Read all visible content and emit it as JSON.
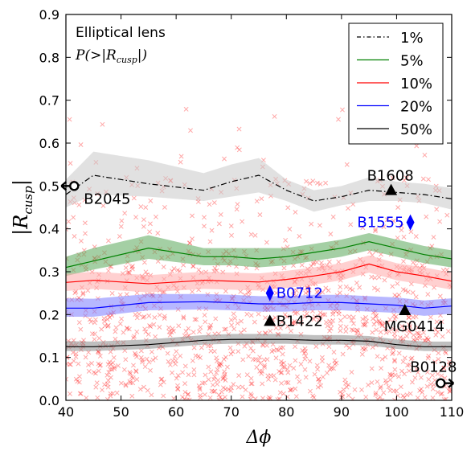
{
  "chart_data": {
    "type": "line",
    "annotation_title": "Elliptical lens",
    "annotation_subtitle": "P(>|Rcusp|)",
    "xlabel": "Δϕ",
    "ylabel": "|Rcusp|",
    "xlim": [
      40,
      110
    ],
    "ylim": [
      0,
      0.9
    ],
    "xticks": [
      40,
      50,
      60,
      70,
      80,
      90,
      100,
      110
    ],
    "yticks": [
      0.0,
      0.1,
      0.2,
      0.3,
      0.4,
      0.5,
      0.6,
      0.7,
      0.8,
      0.9
    ],
    "x": [
      40,
      45,
      55,
      65,
      70,
      75,
      80,
      85,
      90,
      95,
      100,
      105,
      110
    ],
    "series": [
      {
        "name": "1%",
        "color": "#000000",
        "style": "dashdot",
        "band_color": "#c8c8c8",
        "values": [
          0.48,
          0.525,
          0.505,
          0.49,
          0.51,
          0.525,
          0.49,
          0.465,
          0.475,
          0.49,
          0.485,
          0.48,
          0.47
        ],
        "band_low": [
          0.45,
          0.48,
          0.475,
          0.465,
          0.475,
          0.485,
          0.465,
          0.44,
          0.455,
          0.465,
          0.465,
          0.46,
          0.445
        ],
        "band_high": [
          0.515,
          0.58,
          0.56,
          0.53,
          0.55,
          0.565,
          0.515,
          0.49,
          0.5,
          0.52,
          0.51,
          0.505,
          0.495
        ]
      },
      {
        "name": "5%",
        "color": "#008000",
        "style": "solid",
        "band_color": "#5aa85a",
        "values": [
          0.31,
          0.325,
          0.355,
          0.335,
          0.335,
          0.33,
          0.335,
          0.345,
          0.355,
          0.37,
          0.355,
          0.34,
          0.33
        ],
        "band_low": [
          0.29,
          0.305,
          0.33,
          0.315,
          0.315,
          0.31,
          0.315,
          0.325,
          0.335,
          0.35,
          0.335,
          0.32,
          0.31
        ],
        "band_high": [
          0.335,
          0.355,
          0.385,
          0.355,
          0.355,
          0.355,
          0.355,
          0.365,
          0.375,
          0.39,
          0.375,
          0.36,
          0.35
        ]
      },
      {
        "name": "10%",
        "color": "#ff0000",
        "style": "solid",
        "band_color": "#ffaaaa",
        "values": [
          0.275,
          0.28,
          0.272,
          0.28,
          0.278,
          0.276,
          0.282,
          0.29,
          0.3,
          0.318,
          0.3,
          0.29,
          0.278
        ],
        "band_low": [
          0.255,
          0.26,
          0.252,
          0.26,
          0.258,
          0.256,
          0.262,
          0.27,
          0.28,
          0.298,
          0.28,
          0.27,
          0.258
        ],
        "band_high": [
          0.295,
          0.3,
          0.292,
          0.3,
          0.298,
          0.296,
          0.302,
          0.31,
          0.32,
          0.338,
          0.32,
          0.31,
          0.298
        ]
      },
      {
        "name": "20%",
        "color": "#0000ff",
        "style": "solid",
        "band_color": "#7b7bff",
        "values": [
          0.215,
          0.215,
          0.228,
          0.23,
          0.228,
          0.225,
          0.225,
          0.228,
          0.228,
          0.225,
          0.222,
          0.215,
          0.22
        ],
        "band_low": [
          0.195,
          0.195,
          0.21,
          0.212,
          0.21,
          0.207,
          0.207,
          0.21,
          0.21,
          0.207,
          0.204,
          0.197,
          0.202
        ],
        "band_high": [
          0.238,
          0.237,
          0.248,
          0.248,
          0.246,
          0.243,
          0.243,
          0.246,
          0.246,
          0.243,
          0.24,
          0.233,
          0.238
        ]
      },
      {
        "name": "50%",
        "color": "#000000",
        "style": "solid",
        "band_color": "#8a8a8a",
        "values": [
          0.125,
          0.125,
          0.13,
          0.14,
          0.142,
          0.142,
          0.142,
          0.14,
          0.14,
          0.138,
          0.13,
          0.125,
          0.125
        ],
        "band_low": [
          0.115,
          0.115,
          0.12,
          0.13,
          0.132,
          0.132,
          0.132,
          0.13,
          0.13,
          0.128,
          0.12,
          0.115,
          0.115
        ],
        "band_high": [
          0.138,
          0.137,
          0.142,
          0.152,
          0.155,
          0.155,
          0.155,
          0.152,
          0.152,
          0.15,
          0.142,
          0.137,
          0.137
        ]
      }
    ],
    "lenses": [
      {
        "name": "B1608",
        "x": 99,
        "y": 0.49,
        "marker": "triangle",
        "color": "#000000",
        "label_color": "#000000",
        "label_pos": "above"
      },
      {
        "name": "B2045",
        "x": 41.5,
        "y": 0.5,
        "marker": "open-circle-arrow-left",
        "color": "#000000",
        "label_color": "#000000",
        "label_pos": "below-right"
      },
      {
        "name": "B1555",
        "x": 102.5,
        "y": 0.415,
        "marker": "diamond",
        "color": "#0000ff",
        "label_color": "#0000ff",
        "label_pos": "left"
      },
      {
        "name": "B0712",
        "x": 77,
        "y": 0.25,
        "marker": "diamond",
        "color": "#0000ff",
        "label_color": "#0000ff",
        "label_pos": "right"
      },
      {
        "name": "B1422",
        "x": 77,
        "y": 0.185,
        "marker": "triangle",
        "color": "#000000",
        "label_color": "#000000",
        "label_pos": "right"
      },
      {
        "name": "MG0414",
        "x": 101.5,
        "y": 0.21,
        "marker": "triangle",
        "color": "#000000",
        "label_color": "#000000",
        "label_pos": "below"
      },
      {
        "name": "B0128",
        "x": 108,
        "y": 0.04,
        "marker": "open-circle-arrow-right",
        "color": "#000000",
        "label_color": "#000000",
        "label_pos": "above"
      }
    ],
    "scatter": {
      "marker": "x",
      "color": "#ff0000",
      "opacity": 0.35
    },
    "legend_position": "top-right",
    "grid": false
  }
}
